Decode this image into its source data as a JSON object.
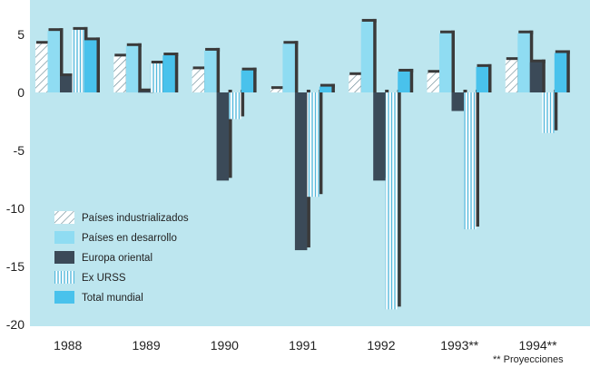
{
  "chart_data": {
    "type": "bar",
    "categories": [
      "1988",
      "1989",
      "1990",
      "1991",
      "1992",
      "1993**",
      "1994**"
    ],
    "series": [
      {
        "name": "Países industrializados",
        "style": "hatch-diagonal",
        "values": [
          4.2,
          3.1,
          2.0,
          0.3,
          1.5,
          1.7,
          2.8
        ]
      },
      {
        "name": "Países en desarrollo",
        "style": "light-cyan",
        "values": [
          5.3,
          4.0,
          3.6,
          4.2,
          6.1,
          5.1,
          5.1
        ]
      },
      {
        "name": "Europa oriental",
        "style": "dark-slate",
        "values": [
          1.4,
          0.1,
          -7.6,
          -13.6,
          -7.6,
          -1.6,
          2.6
        ]
      },
      {
        "name": "Ex URSS",
        "style": "hatch-vertical",
        "values": [
          5.4,
          2.5,
          -2.3,
          -9.0,
          -18.7,
          -11.8,
          -3.5
        ]
      },
      {
        "name": "Total mundial",
        "style": "cyan",
        "values": [
          4.5,
          3.2,
          1.9,
          0.5,
          1.8,
          2.2,
          3.4
        ]
      }
    ],
    "ylim": [
      -20,
      8
    ],
    "yticks": [
      5,
      0,
      -5,
      -10,
      -15,
      -20
    ],
    "ytick_labels": [
      "5",
      "0",
      "-5",
      "-10",
      "-15",
      "-20"
    ],
    "title": "",
    "xlabel": "",
    "ylabel": "",
    "legend_position": "bottom-left",
    "footnote": "** Proyecciones",
    "colors": {
      "panel_background": "#bde6ef",
      "light_cyan": "#8fdcf2",
      "cyan": "#49c2ec",
      "dark_slate": "#3b4a58",
      "hatch_diag_line": "#6a8a95",
      "hatch_vert_line": "#55b9dc",
      "shadow": "#3a3a3a"
    }
  }
}
